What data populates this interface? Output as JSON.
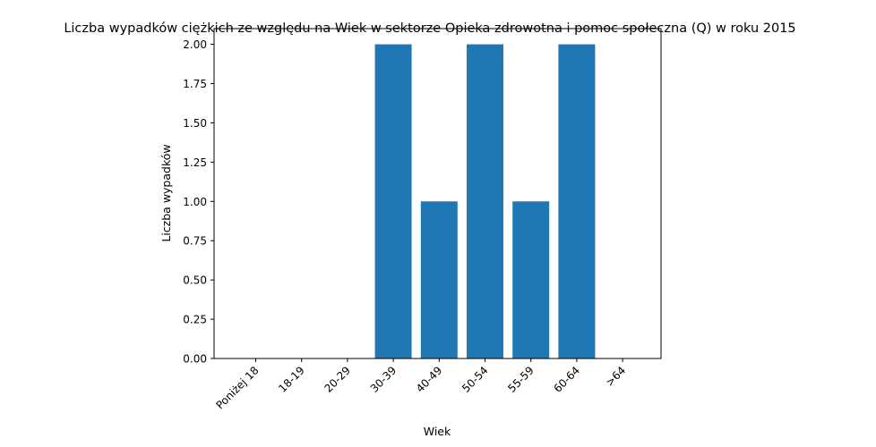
{
  "chart_data": {
    "type": "bar",
    "title": "Liczba wypadków ciężkich ze względu na Wiek w sektorze Opieka zdrowotna i pomoc społeczna  (Q)   w roku 2015",
    "xlabel": "Wiek",
    "ylabel": "Liczba wypadków",
    "categories": [
      "Poniżej 18",
      "18-19",
      "20-29",
      "30-39",
      "40-49",
      "50-54",
      "55-59",
      "60-64",
      ">64"
    ],
    "values": [
      0,
      0,
      0,
      2,
      1,
      2,
      1,
      2,
      0
    ],
    "ylim": [
      0,
      2.1
    ],
    "yticks": [
      "0.00",
      "0.25",
      "0.50",
      "0.75",
      "1.00",
      "1.25",
      "1.50",
      "1.75",
      "2.00"
    ],
    "bar_color": "#1f77b4",
    "grid": false,
    "legend": "none"
  }
}
